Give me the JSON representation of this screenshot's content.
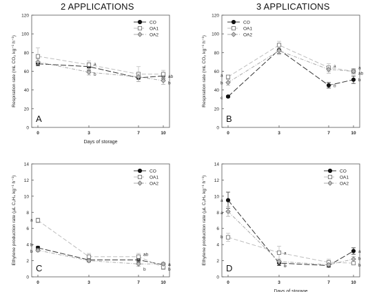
{
  "headers": {
    "left": "2 APPLICATIONS",
    "right": "3 APPLICATIONS"
  },
  "chart_data": [
    {
      "type": "line",
      "panel_label": "A",
      "ylabel": "Respiration rate (mL CO₂ kg⁻¹ h⁻¹)",
      "xlabel": "Days of storage",
      "ylim": [
        0,
        120
      ],
      "yticks": [
        0,
        20,
        40,
        60,
        80,
        100,
        120
      ],
      "x": [
        0,
        3,
        7,
        10
      ],
      "legend_position": "top-right",
      "series": [
        {
          "name": "CO",
          "marker": "filled-circle",
          "color": "#333333",
          "dash": "8,3",
          "values": [
            68,
            65,
            53,
            55
          ],
          "errors": [
            2,
            4,
            4,
            3
          ]
        },
        {
          "name": "OA1",
          "marker": "open-square",
          "color": "#bdbdbd",
          "dash": "6,3",
          "values": [
            76,
            67,
            57,
            57
          ],
          "errors": [
            9,
            4,
            8,
            4
          ]
        },
        {
          "name": "OA2",
          "marker": "grey-diamond",
          "color": "#aaaaaa",
          "dash": "5,2,1,2",
          "values": [
            70,
            59,
            54,
            50
          ],
          "errors": [
            3,
            3,
            3,
            4
          ]
        }
      ],
      "annotations": [
        {
          "x": 3,
          "y": 68,
          "text": "a"
        },
        {
          "x": 3,
          "y": 57,
          "text": "b"
        },
        {
          "x": 10,
          "y": 55,
          "text": "ab"
        },
        {
          "x": 10,
          "y": 48,
          "text": "b"
        }
      ]
    },
    {
      "type": "line",
      "panel_label": "B",
      "ylabel": "Respiration rate (mL CO₂ kg⁻¹ h⁻¹)",
      "xlabel": "",
      "ylim": [
        0,
        120
      ],
      "yticks": [
        0,
        20,
        40,
        60,
        80,
        100,
        120
      ],
      "x": [
        0,
        3,
        7,
        10
      ],
      "legend_position": "top-left",
      "series": [
        {
          "name": "CO",
          "marker": "filled-circle",
          "color": "#333333",
          "dash": "8,3",
          "values": [
            33,
            83,
            45,
            51
          ],
          "errors": [
            1,
            4,
            3,
            4
          ]
        },
        {
          "name": "OA1",
          "marker": "open-square",
          "color": "#bdbdbd",
          "dash": "6,3",
          "values": [
            54,
            88,
            64,
            60
          ],
          "errors": [
            2,
            4,
            4,
            3
          ]
        },
        {
          "name": "OA2",
          "marker": "grey-diamond",
          "color": "#aaaaaa",
          "dash": "5,2,1,2",
          "values": [
            48,
            82,
            62,
            60
          ],
          "errors": [
            3,
            4,
            4,
            3
          ]
        }
      ],
      "annotations": [
        {
          "x": 0,
          "y": 56,
          "text": "a"
        },
        {
          "x": 0,
          "y": 48,
          "text": "b"
        },
        {
          "x": 0,
          "y": 32,
          "text": "c"
        },
        {
          "x": 7,
          "y": 66,
          "text": "a"
        },
        {
          "x": 7,
          "y": 45,
          "text": "b"
        },
        {
          "x": 10,
          "y": 64,
          "text": "a"
        },
        {
          "x": 10,
          "y": 58,
          "text": "ab"
        },
        {
          "x": 10,
          "y": 51,
          "text": "b"
        }
      ]
    },
    {
      "type": "line",
      "panel_label": "C",
      "ylabel": "Ethylene production rate (µL C₂H₄ kg⁻¹ h⁻¹)",
      "xlabel": "",
      "ylim": [
        0,
        14
      ],
      "yticks": [
        0,
        2,
        4,
        6,
        8,
        10,
        12,
        14
      ],
      "x": [
        0,
        3,
        7,
        10
      ],
      "legend_position": "top-right",
      "series": [
        {
          "name": "CO",
          "marker": "filled-circle",
          "color": "#333333",
          "dash": "8,3",
          "values": [
            3.6,
            2.1,
            2.1,
            1.5
          ],
          "errors": [
            0.2,
            0.2,
            0.3,
            0.2
          ]
        },
        {
          "name": "OA1",
          "marker": "open-square",
          "color": "#bdbdbd",
          "dash": "6,3",
          "values": [
            7.0,
            2.5,
            2.5,
            1.2
          ],
          "errors": [
            0.3,
            0.4,
            0.4,
            0.3
          ]
        },
        {
          "name": "OA2",
          "marker": "grey-diamond",
          "color": "#aaaaaa",
          "dash": "5,2,1,2",
          "values": [
            3.3,
            2.0,
            1.6,
            1.6
          ],
          "errors": [
            0.2,
            0.2,
            0.3,
            0.2
          ]
        }
      ],
      "annotations": [
        {
          "x": 0,
          "y": 7.1,
          "text": "a"
        },
        {
          "x": 0,
          "y": 4.0,
          "text": "b"
        },
        {
          "x": 0,
          "y": 3.2,
          "text": "b"
        },
        {
          "x": 7,
          "y": 2.8,
          "text": "ab"
        },
        {
          "x": 7,
          "y": 2.8,
          "text": "a"
        },
        {
          "x": 7,
          "y": 1.0,
          "text": "b"
        },
        {
          "x": 10,
          "y": 1.6,
          "text": "a"
        },
        {
          "x": 10,
          "y": 1.6,
          "text": "a"
        },
        {
          "x": 10,
          "y": 1.0,
          "text": "b"
        }
      ]
    },
    {
      "type": "line",
      "panel_label": "D",
      "ylabel": "Ethylene production rate (µL C₂H₄ kg⁻¹ h⁻¹)",
      "xlabel": "Days of storage",
      "ylim": [
        0,
        14
      ],
      "yticks": [
        0,
        2,
        4,
        6,
        8,
        10,
        12,
        14
      ],
      "x": [
        0,
        3,
        7,
        10
      ],
      "legend_position": "top-right",
      "series": [
        {
          "name": "CO",
          "marker": "filled-circle",
          "color": "#333333",
          "dash": "8,3",
          "values": [
            9.5,
            1.7,
            1.4,
            3.2
          ],
          "errors": [
            1.0,
            0.3,
            0.2,
            0.4
          ]
        },
        {
          "name": "OA1",
          "marker": "open-square",
          "color": "#bdbdbd",
          "dash": "6,3",
          "values": [
            4.9,
            3.0,
            1.8,
            1.7
          ],
          "errors": [
            0.5,
            0.8,
            0.4,
            0.2
          ]
        },
        {
          "name": "OA2",
          "marker": "grey-diamond",
          "color": "#aaaaaa",
          "dash": "5,2,1,2",
          "values": [
            8.1,
            1.9,
            1.5,
            2.2
          ],
          "errors": [
            0.6,
            0.3,
            0.2,
            0.3
          ]
        }
      ],
      "annotations": [
        {
          "x": 0,
          "y": 9.5,
          "text": "a"
        },
        {
          "x": 0,
          "y": 8.0,
          "text": "a"
        },
        {
          "x": 0,
          "y": 5.0,
          "text": "b"
        },
        {
          "x": 3,
          "y": 3.0,
          "text": "a"
        },
        {
          "x": 3,
          "y": 1.4,
          "text": "b"
        },
        {
          "x": 3,
          "y": 1.4,
          "text": "b"
        },
        {
          "x": 10,
          "y": 3.2,
          "text": "a"
        },
        {
          "x": 10,
          "y": 2.3,
          "text": "b"
        },
        {
          "x": 10,
          "y": 1.5,
          "text": "b"
        }
      ]
    }
  ]
}
